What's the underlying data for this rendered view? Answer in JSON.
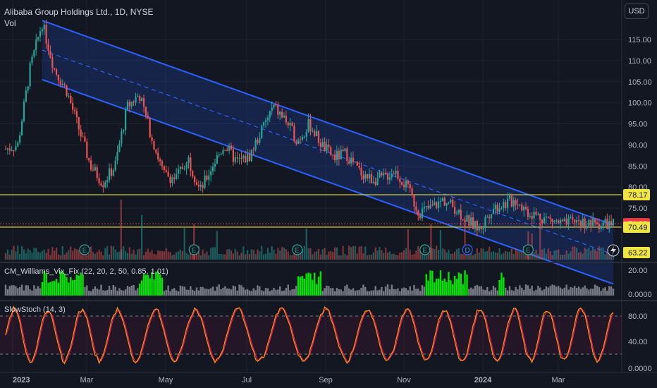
{
  "header": {
    "symbol_title": "Alibaba Group Holdings Ltd., 1D, NYSE",
    "volume_label": "Vol",
    "currency_button": "USD"
  },
  "price_axis": {
    "ticks": [
      "115.00",
      "110.00",
      "105.00",
      "100.00",
      "95.00",
      "90.00",
      "85.00",
      "80.00",
      "75.00"
    ],
    "tags": [
      {
        "label": "78.17",
        "bg": "#f0e442",
        "fg": "#131722",
        "value": 78.17
      },
      {
        "label": "71.29",
        "bg": "#f23645",
        "fg": "#ffffff",
        "value": 71.29
      },
      {
        "label": "70.49",
        "bg": "#f0e442",
        "fg": "#131722",
        "value": 70.49
      },
      {
        "label": "63.22",
        "bg": "#f0e442",
        "fg": "#131722",
        "value": 63.22
      }
    ]
  },
  "indicators": {
    "vix_fix": {
      "title": "CM_Williams_Vix_Fix (22, 20, 2, 50, 0.85, 1.01)",
      "ticks": [
        "20.00",
        "0.0000"
      ]
    },
    "slow_stoch": {
      "title": "SlowStoch (14, 3)",
      "ticks": [
        "80.00",
        "40.00",
        "0.0000"
      ]
    }
  },
  "time_axis": {
    "labels": [
      "2023",
      "Mar",
      "May",
      "Jul",
      "Sep",
      "Nov",
      "2024",
      "Mar"
    ]
  },
  "markers": {
    "earnings_letter": "E",
    "dividend_letter": "D",
    "lightning_icon": "lightning-icon"
  },
  "colors": {
    "background": "#131722",
    "up": "#26a69a",
    "down": "#ef5350",
    "channel": "#2962ff",
    "channel_fill": "rgba(41,98,255,0.18)",
    "horizontal_line": "#f0e442",
    "vix_highlight": "#00e600",
    "vix_normal": "#787b86",
    "stoch_k": "#ff9800",
    "stoch_d": "#e91e63"
  },
  "chart_data": {
    "type": "candlestick",
    "title": "Alibaba Group Holdings Ltd., 1D, NYSE",
    "ylim": [
      61,
      121
    ],
    "horizontal_levels": [
      78.17,
      70.49
    ],
    "last_price": 71.29,
    "channel": {
      "upper": {
        "start": [
          0.0,
          119.5
        ],
        "end": [
          1.0,
          71.0
        ]
      },
      "lower": {
        "start": [
          0.0,
          105.5
        ],
        "end": [
          1.0,
          57.0
        ]
      },
      "mid_dashed": true
    },
    "price_anchors": [
      [
        0.0,
        89
      ],
      [
        0.02,
        90
      ],
      [
        0.04,
        108
      ],
      [
        0.06,
        119
      ],
      [
        0.08,
        108
      ],
      [
        0.1,
        103
      ],
      [
        0.12,
        94
      ],
      [
        0.14,
        85
      ],
      [
        0.16,
        81
      ],
      [
        0.18,
        85
      ],
      [
        0.2,
        99
      ],
      [
        0.22,
        102
      ],
      [
        0.24,
        92
      ],
      [
        0.26,
        83
      ],
      [
        0.28,
        82
      ],
      [
        0.3,
        87
      ],
      [
        0.32,
        79
      ],
      [
        0.34,
        85
      ],
      [
        0.36,
        90
      ],
      [
        0.38,
        86
      ],
      [
        0.4,
        87
      ],
      [
        0.42,
        93
      ],
      [
        0.44,
        99
      ],
      [
        0.46,
        96
      ],
      [
        0.48,
        91
      ],
      [
        0.5,
        95
      ],
      [
        0.52,
        90
      ],
      [
        0.54,
        87
      ],
      [
        0.56,
        88
      ],
      [
        0.58,
        84
      ],
      [
        0.6,
        82
      ],
      [
        0.62,
        82
      ],
      [
        0.64,
        84
      ],
      [
        0.66,
        80
      ],
      [
        0.68,
        74
      ],
      [
        0.7,
        75
      ],
      [
        0.72,
        77
      ],
      [
        0.74,
        75
      ],
      [
        0.76,
        72
      ],
      [
        0.78,
        70
      ],
      [
        0.8,
        75
      ],
      [
        0.82,
        76
      ],
      [
        0.84,
        77
      ],
      [
        0.86,
        74
      ],
      [
        0.88,
        73
      ],
      [
        0.9,
        72
      ],
      [
        0.92,
        71
      ],
      [
        0.94,
        72
      ],
      [
        0.96,
        71.3
      ],
      [
        1.0,
        71.3
      ]
    ],
    "earnings_markers_x": [
      0.13,
      0.31,
      0.48,
      0.69,
      0.86
    ],
    "dividend_marker_x": 0.76,
    "vix_ylim": [
      0,
      30
    ],
    "stoch_ylim": [
      0,
      100
    ],
    "stoch_levels": [
      80,
      20
    ]
  }
}
